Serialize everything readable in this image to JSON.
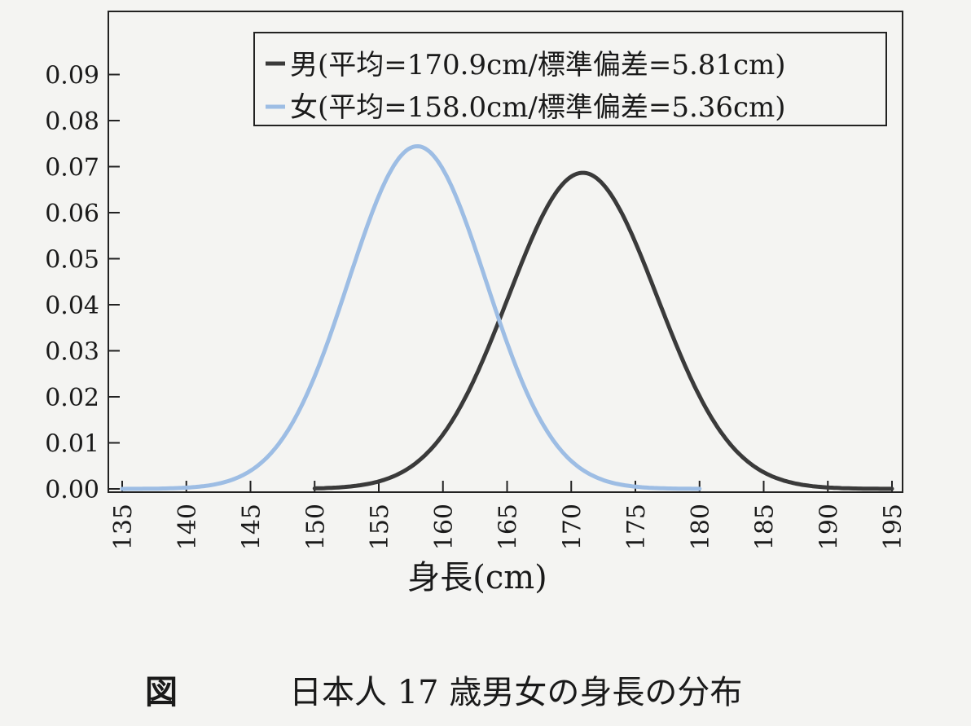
{
  "chart_data": {
    "type": "line",
    "xlabel": "身長(cm)",
    "ylabel": "",
    "xlim": [
      135,
      195
    ],
    "ylim": [
      0,
      0.1
    ],
    "xticks": [
      135,
      140,
      145,
      150,
      155,
      160,
      165,
      170,
      175,
      180,
      185,
      190,
      195
    ],
    "yticks": [
      0.0,
      0.01,
      0.02,
      0.03,
      0.04,
      0.05,
      0.06,
      0.07,
      0.08,
      0.09
    ],
    "ytick_labels": [
      "0.00",
      "0.01",
      "0.02",
      "0.03",
      "0.04",
      "0.05",
      "0.06",
      "0.07",
      "0.08",
      "0.09"
    ],
    "xtick_labels": [
      "135",
      "140",
      "145",
      "150",
      "155",
      "160",
      "165",
      "170",
      "175",
      "180",
      "185",
      "190",
      "195"
    ],
    "grid": false,
    "legend_position": "top-right",
    "series": [
      {
        "name": "男(平均=170.9cm/標準偏差=5.81cm)",
        "color": "#3a3a3a",
        "distribution": "normal",
        "mean": 170.9,
        "sd": 5.81,
        "x_range": [
          150,
          195
        ]
      },
      {
        "name": "女(平均=158.0cm/標準偏差=5.36cm)",
        "color": "#9dbde4",
        "distribution": "normal",
        "mean": 158.0,
        "sd": 5.36,
        "x_range": [
          135,
          180
        ]
      }
    ]
  },
  "caption": {
    "label": "図",
    "text": "日本人 17 歳男女の身長の分布"
  }
}
